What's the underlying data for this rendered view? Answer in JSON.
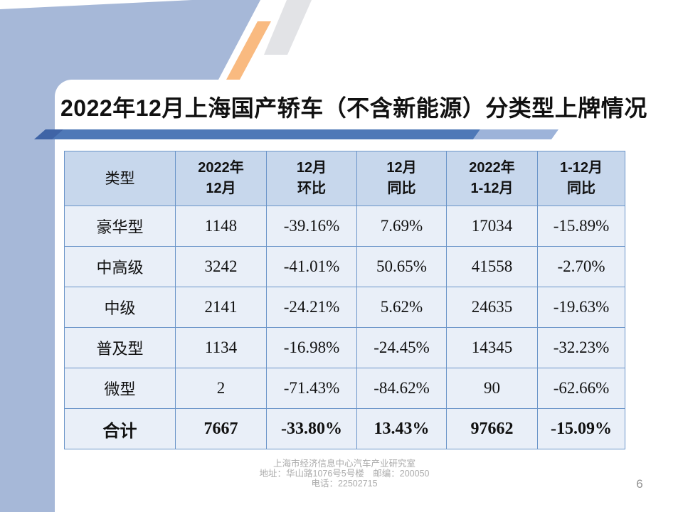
{
  "slide": {
    "title": "2022年12月上海国产轿车（不含新能源）分类型上牌情况",
    "page_number": "6",
    "footer_lines": [
      "上海市经济信息中心汽车产业研究室",
      "地址：华山路1076号5号楼　邮编：200050",
      "电话：22502715"
    ]
  },
  "table": {
    "headers": [
      "类型",
      "2022年\n12月",
      "12月\n环比",
      "12月\n同比",
      "2022年\n1-12月",
      "1-12月\n同比"
    ],
    "rows": [
      {
        "label": "豪华型",
        "values": [
          "1148",
          "-39.16%",
          "7.69%",
          "17034",
          "-15.89%"
        ],
        "bold": false
      },
      {
        "label": "中高级",
        "values": [
          "3242",
          "-41.01%",
          "50.65%",
          "41558",
          "-2.70%"
        ],
        "bold": false
      },
      {
        "label": "中级",
        "values": [
          "2141",
          "-24.21%",
          "5.62%",
          "24635",
          "-19.63%"
        ],
        "bold": false
      },
      {
        "label": "普及型",
        "values": [
          "1134",
          "-16.98%",
          "-24.45%",
          "14345",
          "-32.23%"
        ],
        "bold": false
      },
      {
        "label": "微型",
        "values": [
          "2",
          "-71.43%",
          "-84.62%",
          "90",
          "-62.66%"
        ],
        "bold": false
      },
      {
        "label": "合计",
        "values": [
          "7667",
          "-33.80%",
          "13.43%",
          "97662",
          "-15.09%"
        ],
        "bold": true
      }
    ]
  },
  "colors": {
    "background_blue": "#a6b8d8",
    "bar_main": "#4e78b7",
    "bar_cap": "#3f64a6",
    "bar_tail": "#9db3d9",
    "accent_orange": "#f9ba80",
    "accent_gray": "#e2e3e6",
    "table_header_bg": "#c7d7ec",
    "table_row_bg": "#e9eff8",
    "table_border": "#6b95c9"
  }
}
